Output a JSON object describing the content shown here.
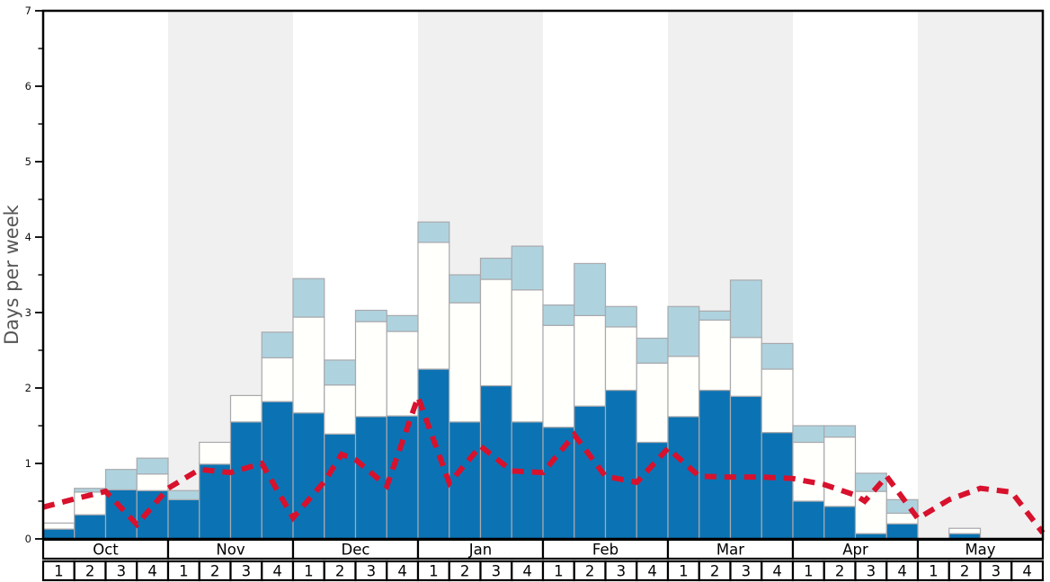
{
  "colors": {
    "dark_blue": "#0b73b4",
    "bar_white": "#fffffb",
    "light_blue": "#aed3df",
    "bar_outline": "#a9a9ad",
    "month_shade": "#f0f0f0",
    "line_red": "#d8112d",
    "axis_black": "#000000",
    "ylabel_grey": "#555555"
  },
  "chart": {
    "ylabel": "Days per week",
    "y_min": 0,
    "y_max": 7,
    "y_major_ticks": [
      0,
      1,
      2,
      3,
      4,
      5,
      6,
      7
    ],
    "y_minor_step": 0.5,
    "week_labels": [
      "1",
      "2",
      "3",
      "4"
    ],
    "months": [
      {
        "label": "Oct",
        "shaded": false
      },
      {
        "label": "Nov",
        "shaded": true
      },
      {
        "label": "Dec",
        "shaded": false
      },
      {
        "label": "Jan",
        "shaded": true
      },
      {
        "label": "Feb",
        "shaded": false
      },
      {
        "label": "Mar",
        "shaded": true
      },
      {
        "label": "Apr",
        "shaded": false
      },
      {
        "label": "May",
        "shaded": true
      }
    ]
  },
  "chart_data": {
    "type": "bar",
    "stacked": true,
    "title": "",
    "xlabel": "",
    "ylabel": "Days per week",
    "ylim": [
      0,
      7
    ],
    "grid": false,
    "legend": false,
    "categories": [
      "Oct-1",
      "Oct-2",
      "Oct-3",
      "Oct-4",
      "Nov-1",
      "Nov-2",
      "Nov-3",
      "Nov-4",
      "Dec-1",
      "Dec-2",
      "Dec-3",
      "Dec-4",
      "Jan-1",
      "Jan-2",
      "Jan-3",
      "Jan-4",
      "Feb-1",
      "Feb-2",
      "Feb-3",
      "Feb-4",
      "Mar-1",
      "Mar-2",
      "Mar-3",
      "Mar-4",
      "Apr-1",
      "Apr-2",
      "Apr-3",
      "Apr-4",
      "May-1",
      "May-2",
      "May-3",
      "May-4"
    ],
    "series": [
      {
        "name": "dark_blue_segment",
        "color": "#0b73b4",
        "cumulative_top": [
          0.13,
          0.32,
          0.65,
          0.64,
          0.52,
          0.99,
          1.55,
          1.82,
          1.67,
          1.39,
          1.62,
          1.63,
          2.25,
          1.55,
          2.03,
          1.55,
          1.48,
          1.76,
          1.97,
          1.28,
          1.62,
          1.97,
          1.89,
          1.41,
          0.5,
          0.43,
          0.07,
          0.2,
          0,
          0.07,
          0,
          0
        ]
      },
      {
        "name": "white_segment",
        "color": "#fffffb",
        "cumulative_top": [
          0.21,
          0.62,
          0.65,
          0.86,
          0.52,
          1.28,
          1.9,
          2.4,
          2.94,
          2.04,
          2.88,
          2.75,
          3.93,
          3.13,
          3.44,
          3.3,
          2.83,
          2.96,
          2.81,
          2.33,
          2.42,
          2.9,
          2.67,
          2.25,
          1.28,
          1.35,
          0.63,
          0.34,
          0,
          0.14,
          0,
          0
        ]
      },
      {
        "name": "light_blue_segment",
        "color": "#aed3df",
        "cumulative_top": [
          0.21,
          0.67,
          0.92,
          1.07,
          0.64,
          1.28,
          1.9,
          2.74,
          3.45,
          2.37,
          3.03,
          2.96,
          4.2,
          3.5,
          3.72,
          3.88,
          3.1,
          3.65,
          3.08,
          2.66,
          3.08,
          3.02,
          3.43,
          2.59,
          1.5,
          1.5,
          0.87,
          0.52,
          0,
          0.14,
          0,
          0
        ]
      }
    ],
    "line": {
      "name": "red_dashed_line",
      "color": "#d8112d",
      "style": "dashed",
      "x_unit": "weeks_from_oct1_boundaries",
      "points": [
        [
          0,
          0.42
        ],
        [
          1,
          0.53
        ],
        [
          2,
          0.63
        ],
        [
          3,
          0.19
        ],
        [
          4,
          0.67
        ],
        [
          5,
          0.92
        ],
        [
          6,
          0.88
        ],
        [
          7,
          1.0
        ],
        [
          8,
          0.28
        ],
        [
          9,
          0.76
        ],
        [
          9.55,
          1.12
        ],
        [
          10,
          1.05
        ],
        [
          11,
          0.7
        ],
        [
          12,
          1.88
        ],
        [
          13,
          0.74
        ],
        [
          14,
          1.23
        ],
        [
          15,
          0.9
        ],
        [
          16,
          0.88
        ],
        [
          17,
          1.38
        ],
        [
          18,
          0.83
        ],
        [
          19,
          0.75
        ],
        [
          20,
          1.2
        ],
        [
          21,
          0.83
        ],
        [
          22,
          0.82
        ],
        [
          23,
          0.82
        ],
        [
          24,
          0.8
        ],
        [
          25,
          0.72
        ],
        [
          26,
          0.58
        ],
        [
          26.3,
          0.5
        ],
        [
          27,
          0.83
        ],
        [
          28,
          0.27
        ],
        [
          29,
          0.52
        ],
        [
          30,
          0.67
        ],
        [
          31,
          0.62
        ],
        [
          32,
          0.08
        ]
      ]
    }
  }
}
